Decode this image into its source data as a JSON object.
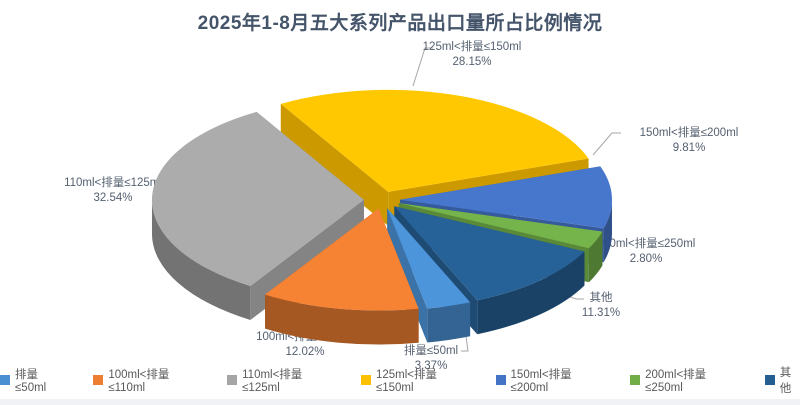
{
  "title": "2025年1-8月五大系列产品出口量所占比例情况",
  "chart_data": {
    "type": "pie",
    "style": "3d-exploded",
    "title": "2025年1-8月五大系列产品出口量所占比例情况",
    "legend_position": "bottom",
    "start_angle_deg": 157,
    "clockwise": true,
    "explode": 0.085,
    "slices": [
      {
        "label": "排量≤50ml",
        "value": 3.37,
        "pct_label": "3.37%",
        "color": "#4A8FD2"
      },
      {
        "label": "100ml<排量≤110ml",
        "value": 12.02,
        "pct_label": "12.02%",
        "color": "#ED7D31"
      },
      {
        "label": "110ml<排量≤125ml",
        "value": 32.54,
        "pct_label": "32.54%",
        "color": "#A5A5A5"
      },
      {
        "label": "125ml<排量≤150ml",
        "value": 28.15,
        "pct_label": "28.15%",
        "color": "#FFC000"
      },
      {
        "label": "150ml<排量≤200ml",
        "value": 9.81,
        "pct_label": "9.81%",
        "color": "#4472C4"
      },
      {
        "label": "200ml<排量≤250ml",
        "value": 2.8,
        "pct_label": "2.80%",
        "color": "#70AD47"
      },
      {
        "label": "其他",
        "value": 11.31,
        "pct_label": "11.31%",
        "color": "#255E91"
      }
    ]
  }
}
